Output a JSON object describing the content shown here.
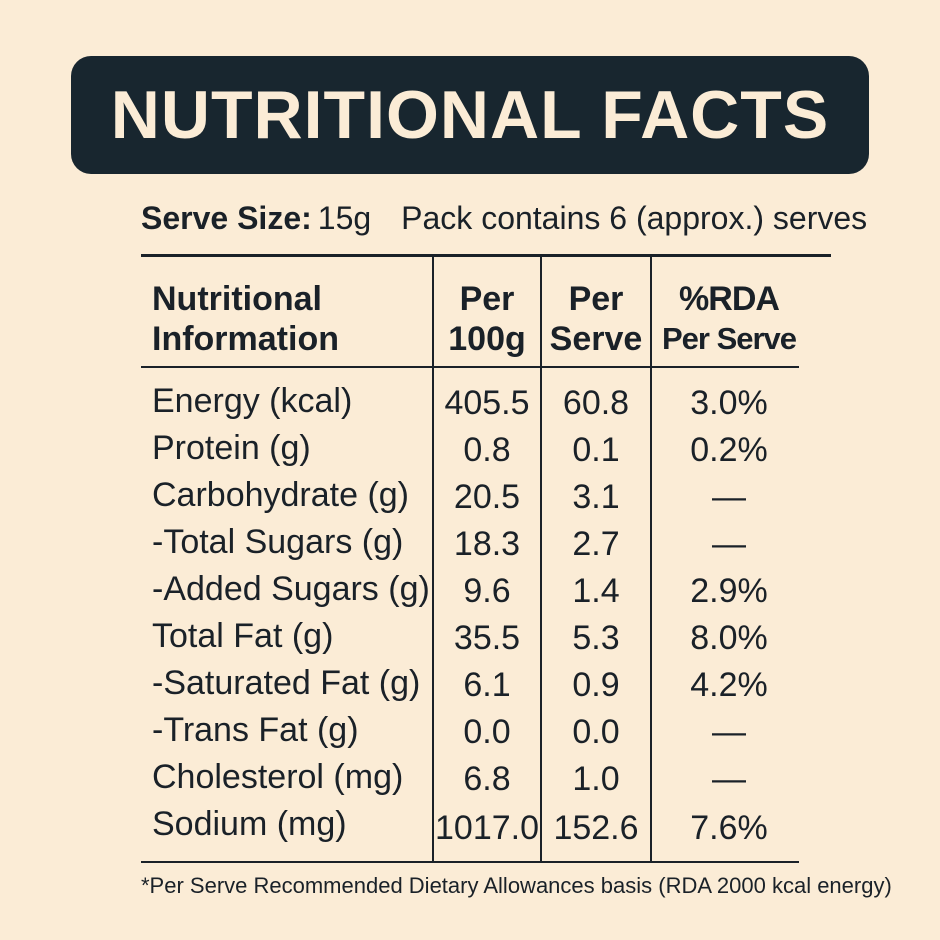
{
  "title": "NUTRITIONAL FACTS",
  "serve": {
    "label": "Serve Size:",
    "value": "15g",
    "pack_text": "Pack contains 6 (approx.) serves"
  },
  "table": {
    "headers": {
      "nutrient_line1": "Nutritional",
      "nutrient_line2": "Information",
      "per100_line1": "Per",
      "per100_line2": "100g",
      "perserve_line1": "Per",
      "perserve_line2": "Serve",
      "rda_line1": "%RDA",
      "rda_line2": "Per Serve"
    },
    "rows": [
      {
        "name": "Energy (kcal)",
        "per100": "405.5",
        "perserve": "60.8",
        "rda": "3.0%"
      },
      {
        "name": "Protein (g)",
        "per100": "0.8",
        "perserve": "0.1",
        "rda": "0.2%"
      },
      {
        "name": "Carbohydrate (g)",
        "per100": "20.5",
        "perserve": "3.1",
        "rda": "—"
      },
      {
        "name": "-Total Sugars (g)",
        "per100": "18.3",
        "perserve": "2.7",
        "rda": "—"
      },
      {
        "name": "-Added Sugars (g)",
        "per100": "9.6",
        "perserve": "1.4",
        "rda": "2.9%"
      },
      {
        "name": "Total Fat (g)",
        "per100": "35.5",
        "perserve": "5.3",
        "rda": "8.0%"
      },
      {
        "name": "-Saturated Fat (g)",
        "per100": "6.1",
        "perserve": "0.9",
        "rda": "4.2%"
      },
      {
        "name": "-Trans Fat (g)",
        "per100": "0.0",
        "perserve": "0.0",
        "rda": "—"
      },
      {
        "name": "Cholesterol (mg)",
        "per100": "6.8",
        "perserve": "1.0",
        "rda": "—"
      },
      {
        "name": "Sodium (mg)",
        "per100": "1017.0",
        "perserve": "152.6",
        "rda": "7.6%"
      }
    ]
  },
  "footnote": "*Per Serve Recommended Dietary Allowances basis (RDA 2000 kcal energy)"
}
